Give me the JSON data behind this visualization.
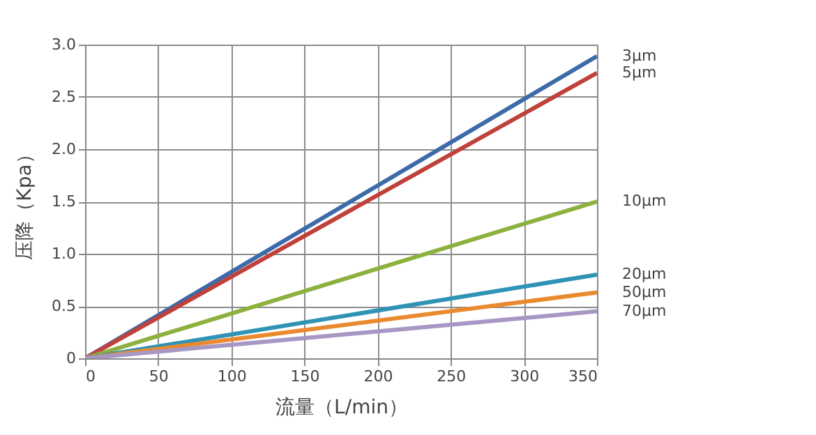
{
  "chart_data": {
    "type": "line",
    "xlabel": "流量（L/min）",
    "ylabel": "压降（Kpa）",
    "x": [
      0,
      350
    ],
    "xlim": [
      0,
      350
    ],
    "xticks": [
      0,
      50,
      100,
      150,
      200,
      250,
      300,
      350
    ],
    "ylim": [
      0,
      3
    ],
    "yticks": [
      0,
      0.5,
      {
        "value": 1,
        "label": "1.0"
      },
      1.5,
      {
        "value": 2,
        "label": "2.0"
      },
      2.5,
      {
        "value": 3,
        "label": "3.0"
      }
    ],
    "grid": true,
    "legend": false,
    "marker": "none",
    "line_style": "solid",
    "series": [
      {
        "name": "3μm",
        "color": "#3d6aa8",
        "values": [
          0,
          2.89
        ]
      },
      {
        "name": "5μm",
        "color": "#c0413a",
        "values": [
          0,
          2.73
        ]
      },
      {
        "name": "10μm",
        "color": "#8db13f",
        "values": [
          0,
          1.5
        ]
      },
      {
        "name": "20μm",
        "color": "#2f93b5",
        "values": [
          0,
          0.8
        ]
      },
      {
        "name": "50μm",
        "color": "#ea8a2e",
        "values": [
          0,
          0.63
        ]
      },
      {
        "name": "70μm",
        "color": "#a797c5",
        "values": [
          0,
          0.45
        ]
      }
    ]
  }
}
